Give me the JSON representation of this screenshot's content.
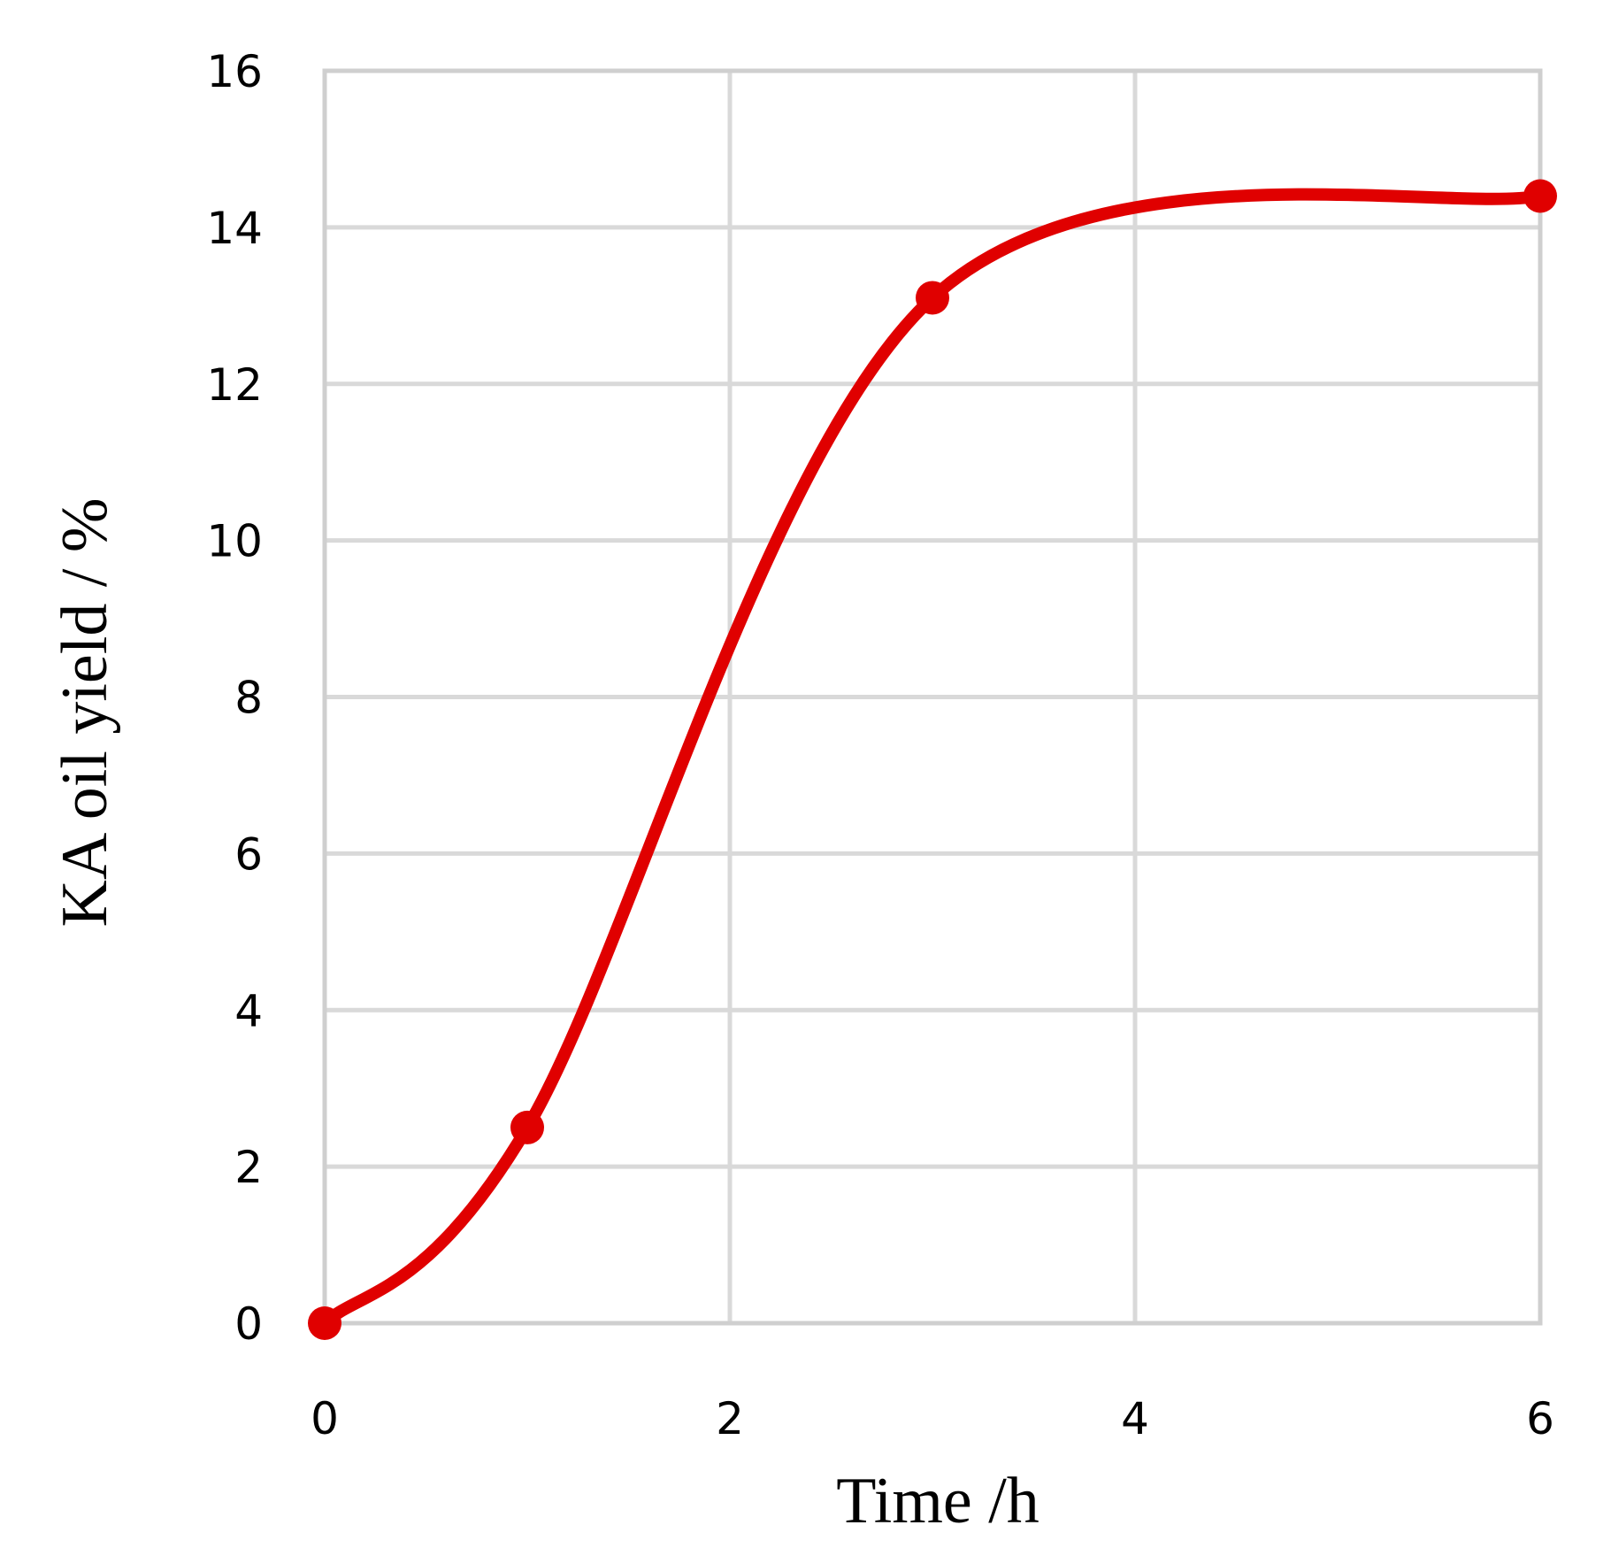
{
  "chart_data": {
    "type": "line",
    "title": "",
    "xlabel": "Time /h",
    "ylabel": "KA oil yield / %",
    "xlim": [
      0,
      6
    ],
    "ylim": [
      0,
      16
    ],
    "x_ticks": [
      "0",
      "2",
      "4",
      "6"
    ],
    "y_ticks": [
      "0",
      "2",
      "4",
      "6",
      "8",
      "10",
      "12",
      "14",
      "16"
    ],
    "grid": true,
    "legend": "none",
    "smooth": true,
    "series": [
      {
        "color": "#e00000",
        "x": [
          0,
          1,
          3,
          6
        ],
        "y": [
          0,
          2.5,
          13.1,
          14.4
        ]
      }
    ]
  }
}
